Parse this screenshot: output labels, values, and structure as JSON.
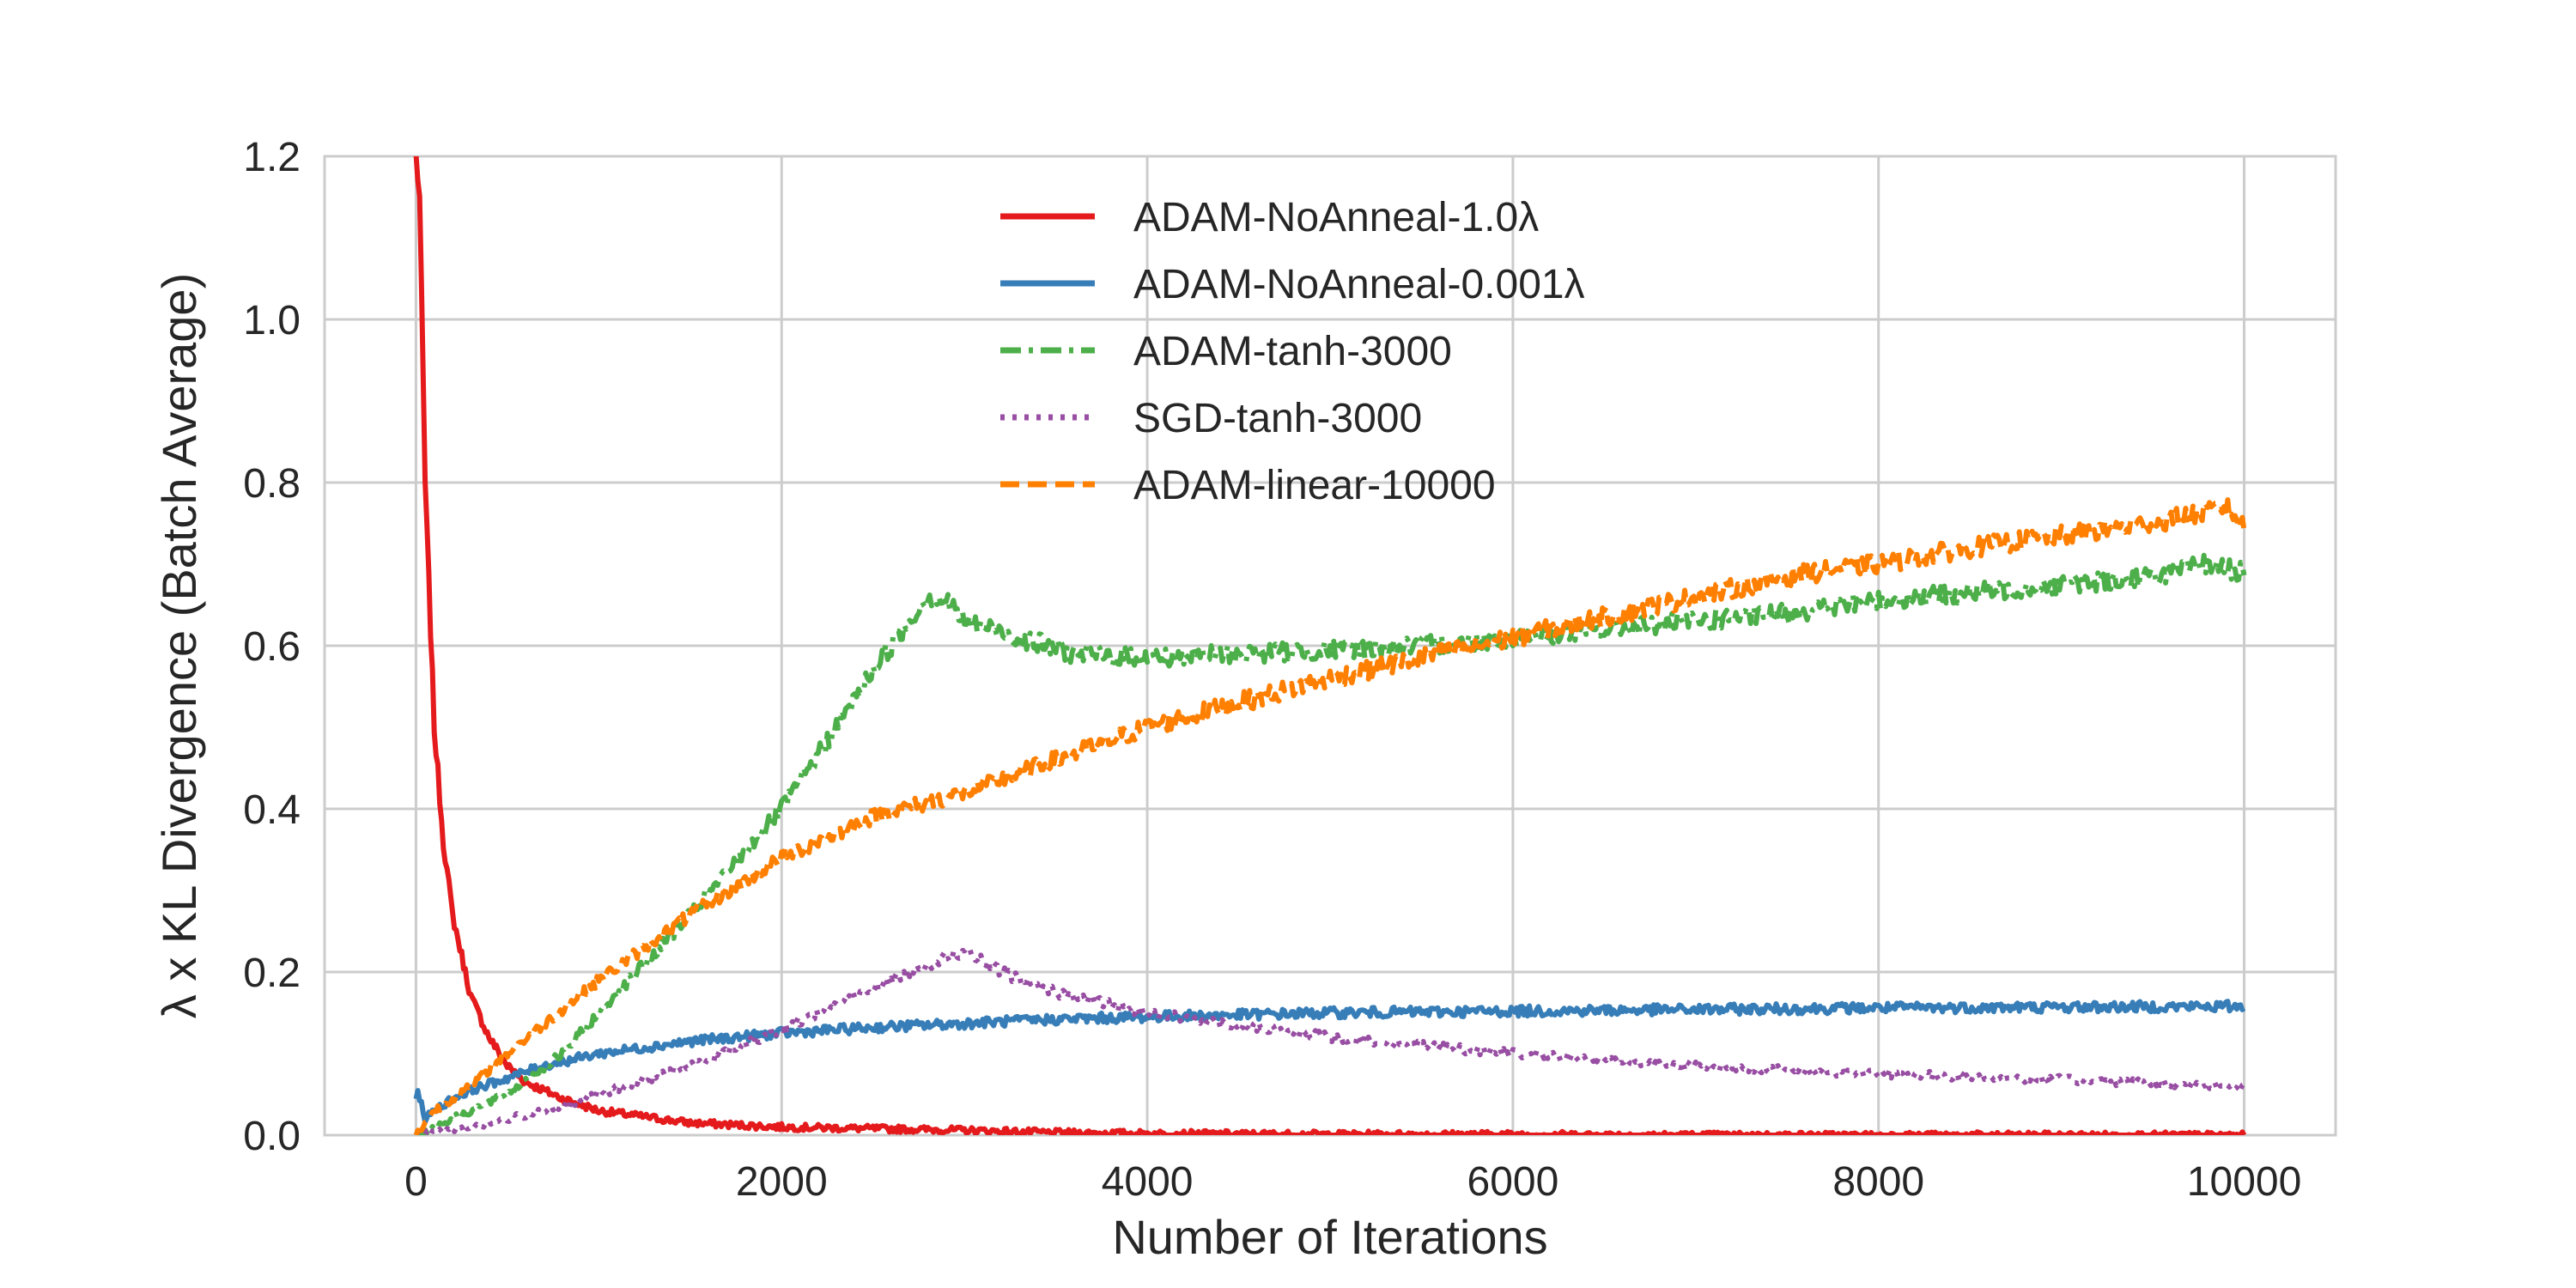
{
  "chart_data": {
    "type": "line",
    "title": "",
    "xlabel": "Number of Iterations",
    "ylabel": "λ x KL Divergence (Batch Average)",
    "xlim": [
      -500,
      10500
    ],
    "ylim": [
      0,
      1.2
    ],
    "xticks": [
      0,
      2000,
      4000,
      6000,
      8000,
      10000
    ],
    "xtick_labels": [
      "0",
      "2000",
      "4000",
      "6000",
      "8000",
      "10000"
    ],
    "yticks": [
      0,
      0.2,
      0.4,
      0.6,
      0.8,
      1.0,
      1.2
    ],
    "ytick_labels": [
      "0.0",
      "0.2",
      "0.4",
      "0.6",
      "0.8",
      "1.0",
      "1.2"
    ],
    "grid": true,
    "legend_position": "top-center",
    "series": [
      {
        "name": "ADAM-NoAnneal-1.0λ",
        "color": "#e41a1c",
        "style": "solid",
        "x": [
          0,
          20,
          50,
          100,
          150,
          200,
          300,
          400,
          500,
          600,
          800,
          1000,
          1500,
          2000,
          2500,
          3000,
          3500,
          4000,
          5000,
          6000,
          7000,
          8000,
          9000,
          10000
        ],
        "y": [
          1.2,
          1.15,
          0.8,
          0.5,
          0.36,
          0.27,
          0.17,
          0.12,
          0.085,
          0.065,
          0.045,
          0.03,
          0.015,
          0.01,
          0.008,
          0.006,
          0.003,
          0.002,
          0.001,
          0.001,
          0.0,
          0.0,
          0.0,
          0.0
        ]
      },
      {
        "name": "ADAM-NoAnneal-0.001λ",
        "color": "#377eb8",
        "style": "solid",
        "x": [
          0,
          10,
          50,
          100,
          200,
          300,
          500,
          700,
          1000,
          1500,
          2000,
          2500,
          3000,
          3500,
          4000,
          5000,
          6000,
          7000,
          8000,
          9000,
          10000
        ],
        "y": [
          0.04,
          0.055,
          0.02,
          0.03,
          0.045,
          0.055,
          0.07,
          0.085,
          0.1,
          0.115,
          0.125,
          0.132,
          0.137,
          0.142,
          0.145,
          0.15,
          0.152,
          0.154,
          0.156,
          0.157,
          0.158
        ]
      },
      {
        "name": "ADAM-tanh-3000",
        "color": "#4daf4a",
        "style": "dashdot",
        "x": [
          0,
          200,
          500,
          800,
          1000,
          1500,
          2000,
          2300,
          2500,
          2700,
          2800,
          2900,
          3000,
          3300,
          3600,
          4000,
          4500,
          5000,
          5500,
          6000,
          6500,
          7000,
          7500,
          8000,
          8500,
          9000,
          9500,
          9800,
          10000
        ],
        "y": [
          0.0,
          0.02,
          0.05,
          0.1,
          0.15,
          0.27,
          0.4,
          0.5,
          0.57,
          0.63,
          0.66,
          0.655,
          0.63,
          0.61,
          0.59,
          0.585,
          0.59,
          0.595,
          0.6,
          0.61,
          0.62,
          0.63,
          0.64,
          0.655,
          0.665,
          0.675,
          0.685,
          0.7,
          0.69
        ]
      },
      {
        "name": "SGD-tanh-3000",
        "color": "#984ea3",
        "style": "dotted",
        "x": [
          0,
          300,
          500,
          800,
          1000,
          1500,
          2000,
          2500,
          2800,
          3000,
          3200,
          3500,
          4000,
          4500,
          5000,
          6000,
          7000,
          8000,
          9000,
          10000
        ],
        "y": [
          0.0,
          0.01,
          0.02,
          0.035,
          0.05,
          0.085,
          0.13,
          0.18,
          0.21,
          0.225,
          0.2,
          0.175,
          0.15,
          0.135,
          0.12,
          0.1,
          0.085,
          0.075,
          0.068,
          0.06
        ]
      },
      {
        "name": "ADAM-linear-10000",
        "color": "#ff7f00",
        "style": "dashed",
        "x": [
          0,
          100,
          300,
          500,
          1000,
          1500,
          2000,
          2500,
          3000,
          3500,
          4000,
          4500,
          5000,
          5500,
          6000,
          6500,
          7000,
          7500,
          8000,
          8500,
          9000,
          9500,
          9900,
          10000
        ],
        "y": [
          0.0,
          0.03,
          0.06,
          0.1,
          0.19,
          0.27,
          0.34,
          0.39,
          0.42,
          0.46,
          0.5,
          0.53,
          0.56,
          0.585,
          0.61,
          0.635,
          0.66,
          0.685,
          0.7,
          0.72,
          0.735,
          0.75,
          0.77,
          0.745
        ]
      }
    ]
  }
}
